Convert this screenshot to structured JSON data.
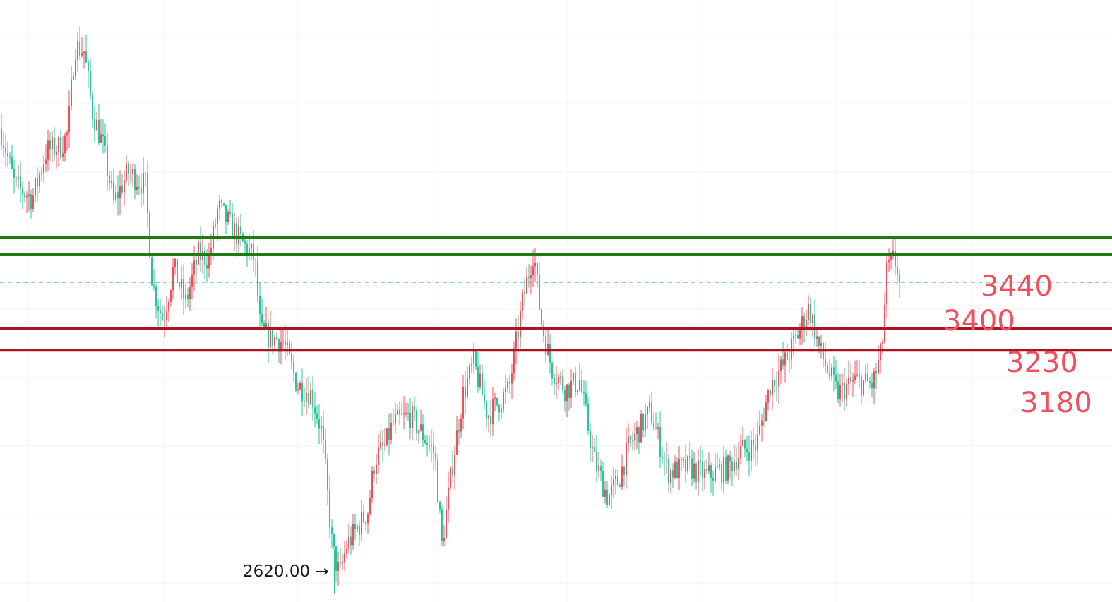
{
  "chart_data": {
    "type": "candlestick",
    "grid": true,
    "colors": {
      "up": "#f0505e",
      "down": "#26c69a",
      "resistance": "#1f7a0f",
      "support": "#b0121f",
      "current_price_line": "#26a69a",
      "level_text": "#f0505e"
    },
    "ylim": [
      2600,
      3987
    ],
    "current_price": 3337,
    "low_marker": {
      "label": "2620.00",
      "arrow": "→",
      "price": 2620
    },
    "levels": [
      {
        "label": "3440",
        "price": 3440,
        "kind": "resistance"
      },
      {
        "label": "3400",
        "price": 3400,
        "kind": "resistance"
      },
      {
        "label": "3230",
        "price": 3230,
        "kind": "support"
      },
      {
        "label": "3180",
        "price": 3180,
        "kind": "support"
      }
    ],
    "path": [
      [
        0,
        3690
      ],
      [
        20,
        3560
      ],
      [
        45,
        3530
      ],
      [
        65,
        3640
      ],
      [
        85,
        3650
      ],
      [
        95,
        3680
      ],
      [
        105,
        3880
      ],
      [
        118,
        3870
      ],
      [
        130,
        3730
      ],
      [
        145,
        3650
      ],
      [
        160,
        3520
      ],
      [
        180,
        3590
      ],
      [
        205,
        3560
      ],
      [
        215,
        3330
      ],
      [
        230,
        3250
      ],
      [
        245,
        3370
      ],
      [
        262,
        3290
      ],
      [
        280,
        3400
      ],
      [
        295,
        3390
      ],
      [
        308,
        3510
      ],
      [
        320,
        3480
      ],
      [
        345,
        3420
      ],
      [
        360,
        3390
      ],
      [
        368,
        3220
      ],
      [
        400,
        3200
      ],
      [
        420,
        3100
      ],
      [
        440,
        3080
      ],
      [
        455,
        2990
      ],
      [
        470,
        2720
      ],
      [
        480,
        2660
      ],
      [
        490,
        2730
      ],
      [
        520,
        2810
      ],
      [
        530,
        2930
      ],
      [
        545,
        2960
      ],
      [
        555,
        3010
      ],
      [
        580,
        3030
      ],
      [
        600,
        2980
      ],
      [
        615,
        2940
      ],
      [
        625,
        2730
      ],
      [
        640,
        2920
      ],
      [
        655,
        3080
      ],
      [
        670,
        3150
      ],
      [
        690,
        3030
      ],
      [
        720,
        3090
      ],
      [
        740,
        3300
      ],
      [
        755,
        3410
      ],
      [
        765,
        3250
      ],
      [
        780,
        3140
      ],
      [
        800,
        3090
      ],
      [
        820,
        3110
      ],
      [
        840,
        2930
      ],
      [
        860,
        2840
      ],
      [
        875,
        2880
      ],
      [
        890,
        2960
      ],
      [
        920,
        3040
      ],
      [
        945,
        2900
      ],
      [
        975,
        2910
      ],
      [
        1000,
        2890
      ],
      [
        1030,
        2910
      ],
      [
        1050,
        2950
      ],
      [
        1070,
        2960
      ],
      [
        1090,
        3100
      ],
      [
        1110,
        3150
      ],
      [
        1130,
        3220
      ],
      [
        1145,
        3280
      ],
      [
        1160,
        3180
      ],
      [
        1185,
        3080
      ],
      [
        1210,
        3110
      ],
      [
        1235,
        3100
      ],
      [
        1248,
        3180
      ],
      [
        1255,
        3360
      ],
      [
        1265,
        3390
      ],
      [
        1275,
        3350
      ]
    ]
  }
}
